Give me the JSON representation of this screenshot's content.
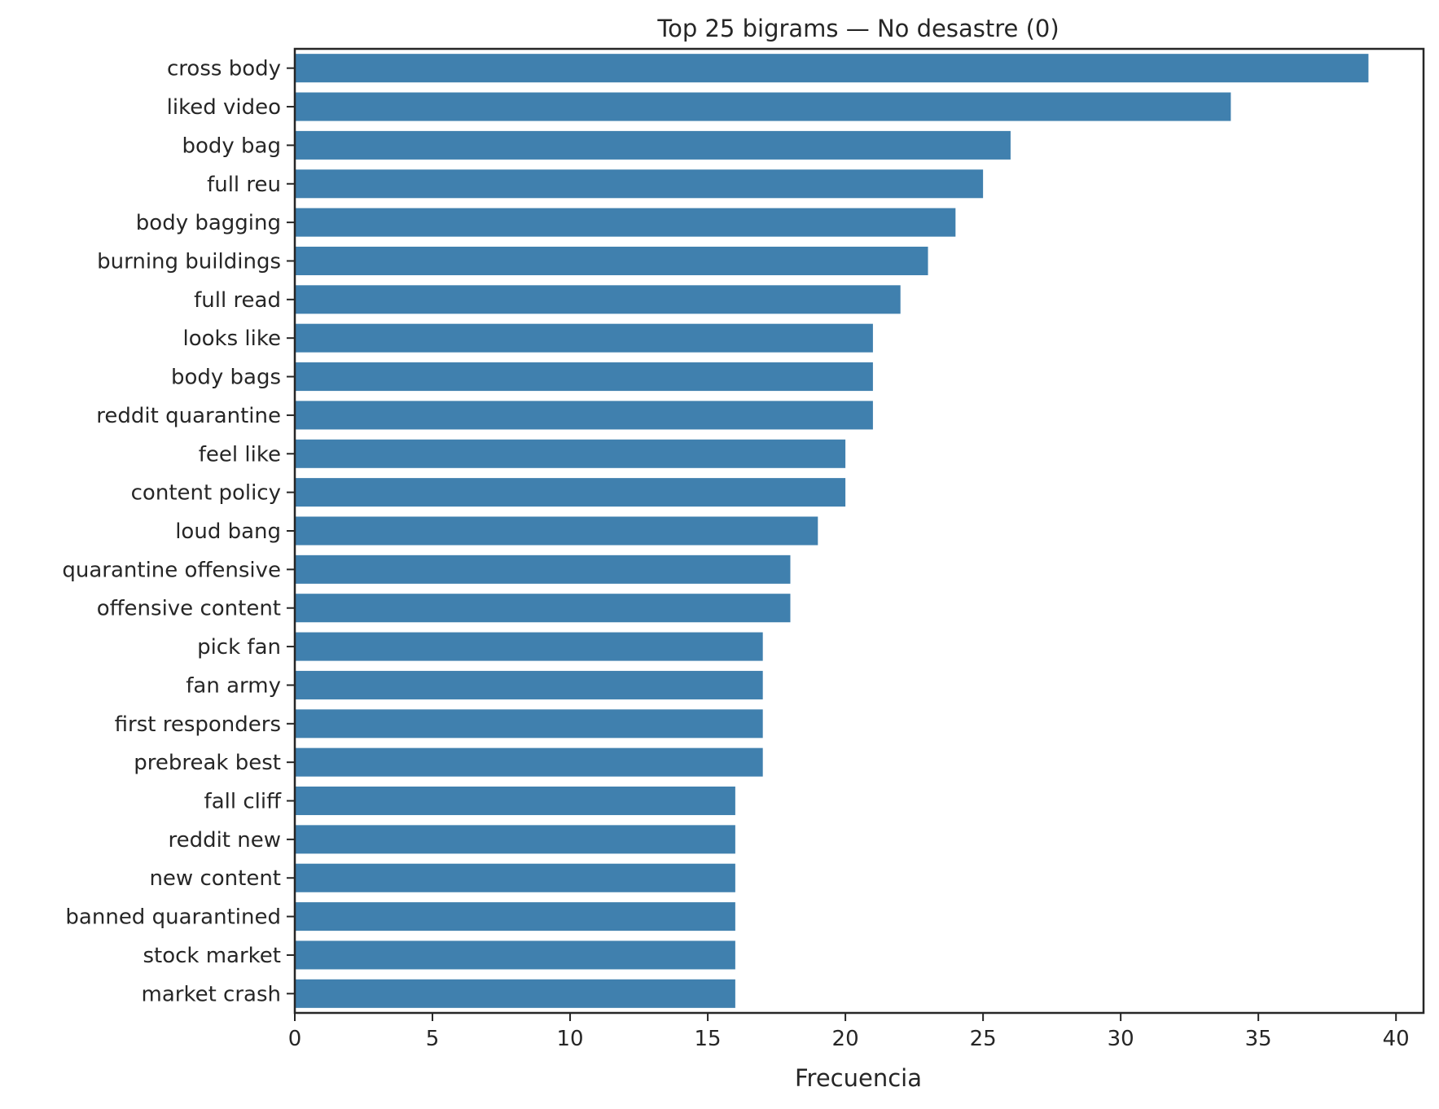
{
  "chart_data": {
    "type": "bar",
    "orientation": "horizontal",
    "title": "Top 25 bigrams — No desastre (0)",
    "xlabel": "Frecuencia",
    "ylabel": "",
    "xlim": [
      0,
      41
    ],
    "xticks": [
      0,
      5,
      10,
      15,
      20,
      25,
      30,
      35,
      40
    ],
    "grid": false,
    "bar_color": "#4080ae",
    "categories": [
      "cross body",
      "liked video",
      "body bag",
      "full reu",
      "body bagging",
      "burning buildings",
      "full read",
      "looks like",
      "body bags",
      "reddit quarantine",
      "feel like",
      "content policy",
      "loud bang",
      "quarantine offensive",
      "offensive content",
      "pick fan",
      "fan army",
      "first responders",
      "prebreak best",
      "fall cliff",
      "reddit new",
      "new content",
      "banned quarantined",
      "stock market",
      "market crash"
    ],
    "values": [
      39,
      34,
      26,
      25,
      24,
      23,
      22,
      21,
      21,
      21,
      20,
      20,
      19,
      18,
      18,
      17,
      17,
      17,
      17,
      16,
      16,
      16,
      16,
      16,
      16
    ]
  }
}
